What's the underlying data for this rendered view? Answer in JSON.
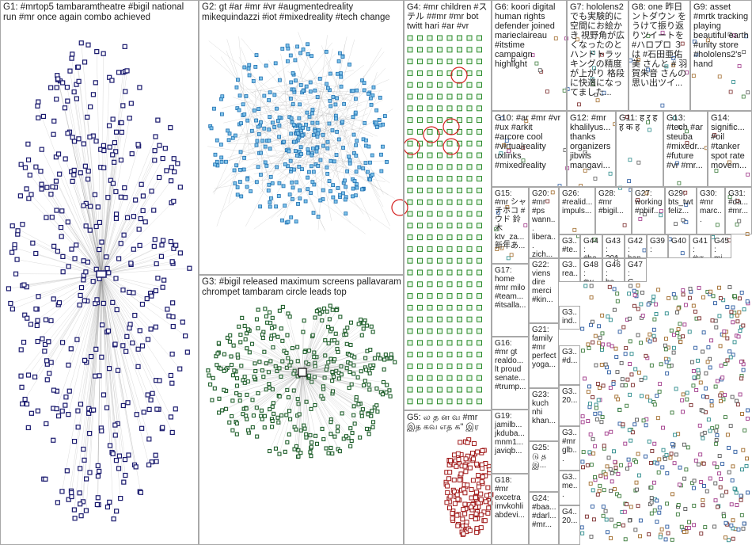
{
  "groups": [
    {
      "id": "G1",
      "label": "G1: #mrtop5 tambaramtheatre #bigil national run #mr once again combo achieved",
      "color": "#1a1a6e"
    },
    {
      "id": "G2",
      "label": "G2: gt #ar #mr #vr #augmentedreality mikequindazzi #iot #mixedreality #tech change",
      "color": "#1e6fb0"
    },
    {
      "id": "G3",
      "label": "G3: #bigil released maximum screens pallavaram chrompet tambaram circle leads top",
      "color": "#1e5e2a"
    },
    {
      "id": "G4",
      "label": "G4: #mr children #ステル ##mr #mr bot twitt hari #ar #vr",
      "color": "#2a8a2a"
    },
    {
      "id": "G5",
      "label": "G5: ல த ன வ #mr இத கவ எத க\" இர",
      "color": "#a01818"
    },
    {
      "id": "G6",
      "label": "G6: koori digital human rights defender joined marieclaireau #itstime campaign highlight",
      "color": "#555555"
    },
    {
      "id": "G7",
      "label": "G7: hololens2 でも実験的に空間にお絵かき 視野角が広くなったのとハンドトラッキングの精度が上がり 格段に快適になってました...",
      "color": "#d4a017"
    },
    {
      "id": "G8",
      "label": "G8: one 昨日 ントダウン をうけて振り返りツイートを #ハロプロ ３は #石田亜佑美 さんと # 羽賀朱音 さんの思い出ツイ...",
      "color": "#8a5a2a"
    },
    {
      "id": "G9",
      "label": "G9: asset #mrtk tracking playing beautiful earth #unity store #hololens2's hand",
      "color": "#3a7a3a"
    },
    {
      "id": "G10",
      "label": "G10: #ar #mr #vr #ux #arkit #arcore cool #virtualreality uxlinks #mixedreality",
      "color": "#5a8a5a"
    },
    {
      "id": "G11",
      "label": "G11: ह र ह ह क ह",
      "color": "#7a4aa0"
    },
    {
      "id": "G12",
      "label": "G12: #mr khalilyus... thanks organizers jibwis mangavi...",
      "color": "#4a4a9a"
    },
    {
      "id": "G13",
      "label": "G13: #tech #ar steuba #mixedr... #future #vr #mr...",
      "color": "#2a6a8a"
    },
    {
      "id": "G14",
      "label": "G14: signific... #oil #tanker spot rate movem...",
      "color": "#6a6a2a"
    },
    {
      "id": "G15",
      "label": "G15: #mr シャチホコ #ウド 鈴木 ktv_za... 新年あ...",
      "color": "#9a3a5a"
    },
    {
      "id": "G16",
      "label": "G16: #mr gt realdo... lt proud senate... #trump...",
      "color": "#3a3a3a"
    },
    {
      "id": "G17",
      "label": "G17: home #mr milo #team... #itsalla...",
      "color": "#5a3a7a"
    },
    {
      "id": "G18",
      "label": "G18: #mr excetra imvkohli abdevi...",
      "color": "#2a5a5a"
    },
    {
      "id": "G19",
      "label": "G19: jamilb... jkduba... mnm1... javiqb...",
      "color": "#6a2a2a"
    },
    {
      "id": "G20",
      "label": "G20: #mr #ps wann... libera... zich...",
      "color": "#2a2a6a"
    },
    {
      "id": "G21",
      "label": "G21: family #mr perfect yoga...",
      "color": "#7a7a2a"
    },
    {
      "id": "G22",
      "label": "G22: viens dire merci #kin...",
      "color": "#4a7a9a"
    },
    {
      "id": "G23",
      "label": "G23: kuch nhi khan...",
      "color": "#8a4a2a"
    },
    {
      "id": "G24",
      "label": "G24: #baa... #darl... #mr...",
      "color": "#2a7a5a"
    },
    {
      "id": "G25",
      "label": "G25: டு த இ...",
      "color": "#7a2a7a"
    },
    {
      "id": "G26",
      "label": "G26: #realid... impuls...",
      "color": "#3a5a9a"
    },
    {
      "id": "G27",
      "label": "G27: working #pbiif...",
      "color": "#9a6a2a"
    },
    {
      "id": "G28",
      "label": "G28: #mr #bigil...",
      "color": "#2a9a6a"
    },
    {
      "id": "G29",
      "label": "G29: bts_twt feliz...",
      "color": "#6a2a9a"
    },
    {
      "id": "G30",
      "label": "G30: #mr marc...",
      "color": "#9a2a4a"
    },
    {
      "id": "G31",
      "label": "G31: #da... #mr...",
      "color": "#4a9a2a"
    }
  ],
  "small_groups": [
    {
      "id": "G44",
      "label": "G44: #ho..."
    },
    {
      "id": "G43",
      "label": "G43: 201..."
    },
    {
      "id": "G42",
      "label": "G42: hap..."
    },
    {
      "id": "G39",
      "label": "G39:"
    },
    {
      "id": "G40",
      "label": "G40"
    },
    {
      "id": "G41",
      "label": "G41: #xr..."
    },
    {
      "id": "G45",
      "label": "G45: mi..."
    },
    {
      "id": "G48",
      "label": "G48: #w..."
    },
    {
      "id": "G46",
      "label": "G46: ha..."
    },
    {
      "id": "G47",
      "label": "G47: G..."
    },
    {
      "id": "G32",
      "label": "G3.. #te..."
    },
    {
      "id": "G33",
      "label": "G3.. rea..."
    },
    {
      "id": "G34",
      "label": "G3.. ind..."
    },
    {
      "id": "G35",
      "label": "G3.. #d..."
    },
    {
      "id": "G36",
      "label": "G3.. 20..."
    },
    {
      "id": "G37",
      "label": "G3.. #mr glb..."
    },
    {
      "id": "G38",
      "label": "G3.. me..."
    },
    {
      "id": "G49",
      "label": "G4.. 20..."
    }
  ],
  "colors": {
    "edge": "#9a9a9a",
    "highlight_circle": "#d42020",
    "border": "#a8a8a8"
  }
}
